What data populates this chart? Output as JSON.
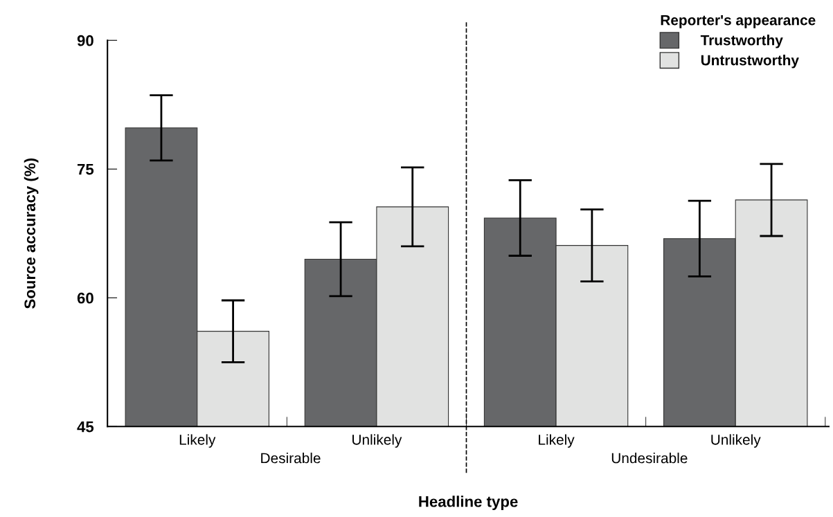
{
  "chart_data": {
    "type": "bar",
    "xlabel": "Headline type",
    "ylabel": "Source accuracy (%)",
    "legend_title": "Reporter's appearance",
    "categories": [
      "Likely",
      "Unlikely",
      "Likely",
      "Unlikely"
    ],
    "series": [
      {
        "name": "Trustworthy",
        "color": "#666769",
        "values": [
          79.8,
          64.5,
          69.3,
          66.9
        ],
        "errors": [
          3.8,
          4.3,
          4.4,
          4.4
        ]
      },
      {
        "name": "Untrustworthy",
        "color": "#e1e2e1",
        "values": [
          56.1,
          70.6,
          66.1,
          71.4
        ],
        "errors": [
          3.6,
          4.6,
          4.2,
          4.2
        ]
      }
    ],
    "ylim": [
      45,
      90
    ],
    "yticks": [
      45,
      60,
      75,
      90
    ],
    "grid": false,
    "legend": "top right",
    "annotations": [
      "Desirable",
      "Undesirable"
    ]
  }
}
